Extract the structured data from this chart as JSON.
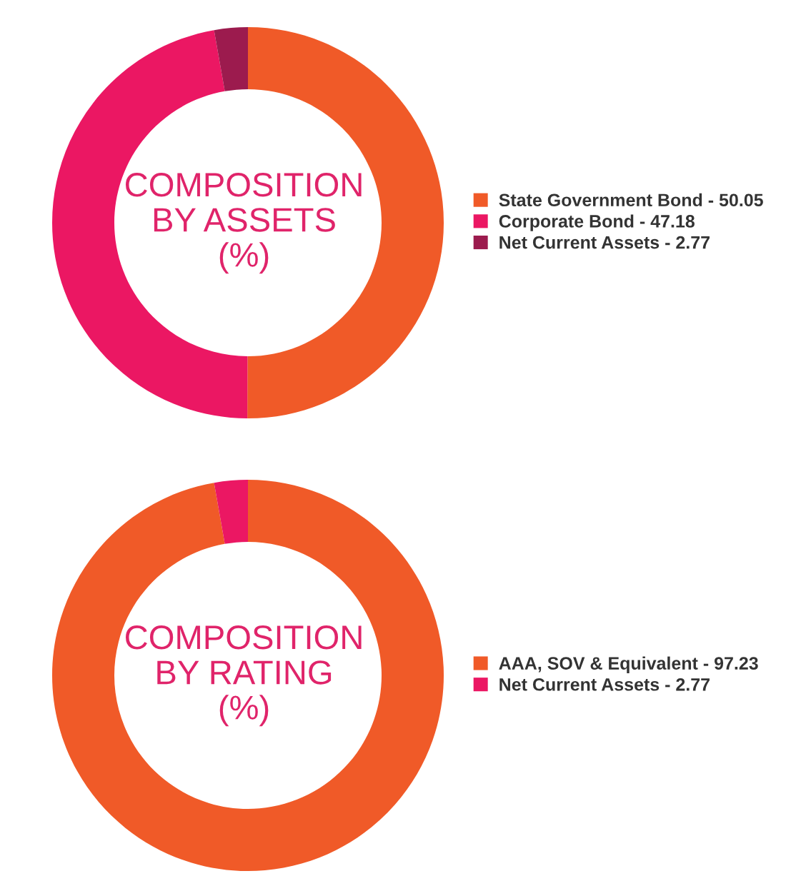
{
  "chart_data": [
    {
      "type": "donut",
      "title": "COMPOSITION\nBY ASSETS\n(%)",
      "categories": [
        "State Government Bond - 50.05",
        "Corporate Bond - 47.18",
        "Net Current Assets - 2.77"
      ],
      "values": [
        50.05,
        47.18,
        2.77
      ],
      "colors": [
        "#f05a28",
        "#eb1763",
        "#9c1b4e"
      ],
      "legend": "right"
    },
    {
      "type": "donut",
      "title": "COMPOSITION\nBY RATING\n(%)",
      "categories": [
        "AAA, SOV & Equivalent - 97.23",
        "Net Current Assets - 2.77"
      ],
      "values": [
        97.23,
        2.77
      ],
      "colors": [
        "#f05a28",
        "#eb1763"
      ],
      "legend": "right"
    }
  ]
}
